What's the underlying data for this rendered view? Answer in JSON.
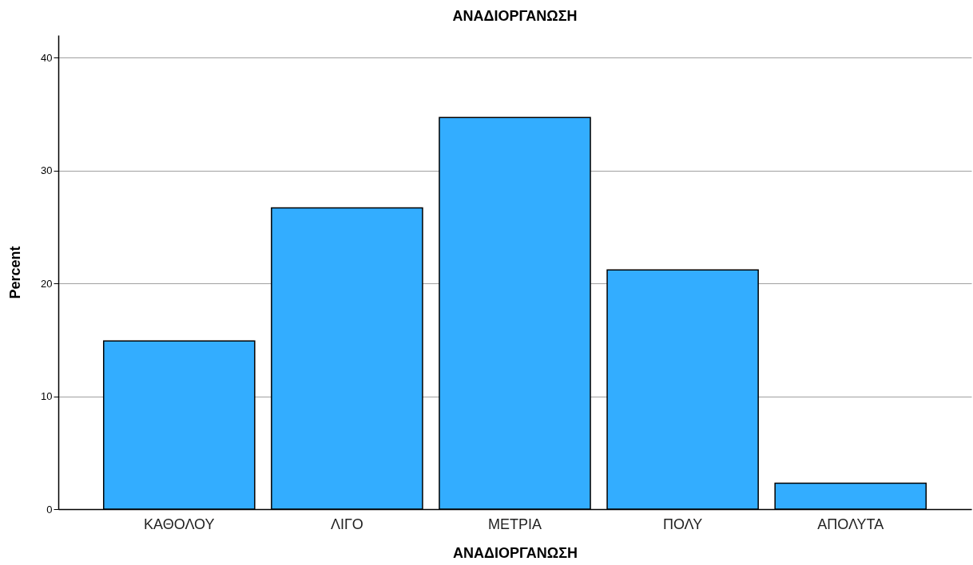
{
  "chart_data": {
    "type": "bar",
    "title": "ΑΝΑΔΙΟΡΓΑΝΩΣΗ",
    "xlabel": "ΑΝΑΔΙΟΡΓΑΝΩΣΗ",
    "ylabel": "Percent",
    "categories": [
      "ΚΑΘΟΛΟΥ",
      "ΛΙΓΟ",
      "ΜΕΤΡΙΑ",
      "ΠΟΛΥ",
      "ΑΠΟΛΥΤΑ"
    ],
    "values": [
      14.9,
      26.7,
      34.7,
      21.2,
      2.3
    ],
    "color": "#33adff",
    "ylim": [
      0,
      42
    ],
    "yticks": [
      0,
      10,
      20,
      30,
      40
    ],
    "grid": "y"
  }
}
